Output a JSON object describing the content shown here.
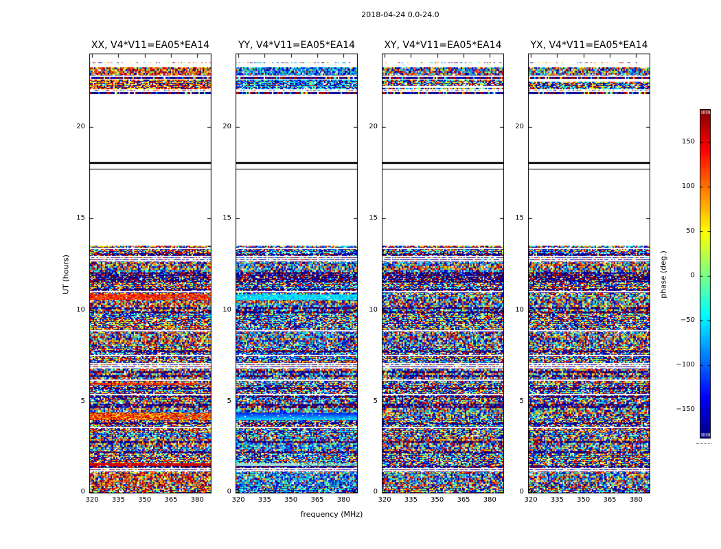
{
  "figure": {
    "suptitle": "2018-04-24 0.0-24.0",
    "xlabel": "frequency (MHz)",
    "ylabel": "UT (hours)",
    "colorbar_label": "phase (deg.)"
  },
  "chart_data": {
    "type": "heatmap",
    "description": "Four waterfall plots (dynamic spectra) of interferometric visibility phase vs frequency and time for baseline V4*V11=EA05*EA14, polarizations XX, YY, XY, YX. Phase noise shown with jet colormap.",
    "panels": [
      {
        "title": "XX, V4*V11=EA05*EA14",
        "bias": "warm"
      },
      {
        "title": "YY, V4*V11=EA05*EA14",
        "bias": "cool"
      },
      {
        "title": "XY, V4*V11=EA05*EA14",
        "bias": "neutral"
      },
      {
        "title": "YX, V4*V11=EA05*EA14",
        "bias": "neutral"
      }
    ],
    "x_axis": {
      "label": "frequency (MHz)",
      "lim": [
        318.4,
        388.1
      ],
      "ticks": [
        320,
        335,
        350,
        365,
        380
      ]
    },
    "y_axis": {
      "label": "UT (hours)",
      "lim": [
        0,
        24
      ],
      "ticks": [
        0,
        5,
        10,
        15,
        20
      ]
    },
    "colorbar": {
      "label": "phase (deg.)",
      "clim": [
        -180,
        180
      ],
      "ticks": [
        150,
        100,
        50,
        0,
        -50,
        -100,
        -150
      ],
      "tick_labels": [
        "150",
        "100",
        "50",
        "0",
        "−50",
        "−100",
        "−150"
      ],
      "colormap": "jet"
    },
    "bands": [
      {
        "ut0": 23.42,
        "ut1": 23.53,
        "type": "sparse"
      },
      {
        "ut0": 22.79,
        "ut1": 23.24,
        "type": "dense"
      },
      {
        "ut0": 22.62,
        "ut1": 22.73,
        "type": "dark"
      },
      {
        "ut0": 22.06,
        "ut1": 22.56,
        "type": "dense"
      },
      {
        "ut0": 21.93,
        "ut1": 22.02,
        "type": "sparse"
      },
      {
        "ut0": 21.78,
        "ut1": 21.89,
        "type": "dark"
      },
      {
        "ut0": 17.99,
        "ut1": 18.07,
        "type": "black"
      },
      {
        "ut0": 17.66,
        "ut1": 17.7,
        "type": "black"
      },
      {
        "ut0": 0.0,
        "ut1": 13.52,
        "type": "scan"
      }
    ],
    "gaps_ut": [
      [
        13.32,
        13.4
      ],
      [
        12.64,
        12.95
      ],
      [
        6.85,
        7.09
      ],
      [
        3.5,
        3.6
      ],
      [
        1.2,
        1.42
      ]
    ],
    "dark_band_ut": [
      11.49,
      12.13
    ],
    "bottom_band_ut": [
      0.0,
      1.16
    ],
    "streaks": [
      [
        {
          "ut0": 10.56,
          "ut1": 10.86,
          "style": "orange"
        },
        {
          "ut0": 5.92,
          "ut1": 6.03,
          "style": "orange"
        },
        {
          "ut0": 4.01,
          "ut1": 4.38,
          "style": "orange_red"
        },
        {
          "ut0": 1.5,
          "ut1": 1.65,
          "style": "red"
        }
      ],
      [
        {
          "ut0": 10.56,
          "ut1": 10.86,
          "style": "cyan"
        },
        {
          "ut0": 4.01,
          "ut1": 4.38,
          "style": "blue_cyan"
        },
        {
          "ut0": 1.5,
          "ut1": 1.65,
          "style": "pale_cyan"
        }
      ],
      [],
      []
    ]
  },
  "colors": {
    "background": "#ffffff",
    "axis": "#000000",
    "jet_stops": [
      "#000080",
      "#0000ff",
      "#00ffff",
      "#80ff80",
      "#ffff00",
      "#ff0000",
      "#800000"
    ]
  }
}
